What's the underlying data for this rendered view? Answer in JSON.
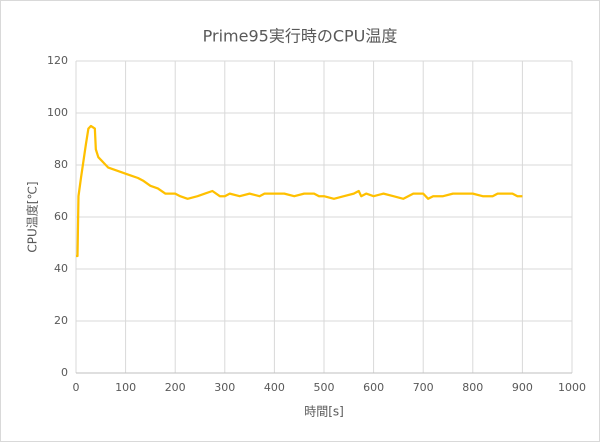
{
  "chart_data": {
    "type": "line",
    "title": "Prime95実行時のCPU温度",
    "xlabel": "時間[s]",
    "ylabel": "CPU温度[℃]",
    "color": "#FFC000",
    "grid": true,
    "xlim": [
      0,
      1000
    ],
    "xticks": [
      0,
      100,
      200,
      300,
      400,
      500,
      600,
      700,
      800,
      900,
      1000
    ],
    "ylim": [
      0,
      120
    ],
    "yticks": [
      0,
      20,
      40,
      60,
      80,
      100,
      120
    ],
    "x": [
      0,
      3,
      5,
      10,
      20,
      25,
      30,
      38,
      40,
      45,
      55,
      65,
      80,
      95,
      110,
      125,
      135,
      150,
      165,
      180,
      200,
      210,
      225,
      245,
      260,
      275,
      290,
      300,
      310,
      330,
      350,
      370,
      380,
      400,
      420,
      440,
      460,
      480,
      490,
      500,
      520,
      540,
      560,
      570,
      575,
      585,
      600,
      620,
      640,
      660,
      680,
      700,
      710,
      720,
      740,
      760,
      800,
      820,
      840,
      850,
      880,
      890,
      900
    ],
    "values": [
      45,
      45,
      68,
      75,
      88,
      94,
      95,
      94,
      86,
      83,
      81,
      79,
      78,
      77,
      76,
      75,
      74,
      72,
      71,
      69,
      69,
      68,
      67,
      68,
      69,
      70,
      68,
      68,
      69,
      68,
      69,
      68,
      69,
      69,
      69,
      68,
      69,
      69,
      68,
      68,
      67,
      68,
      69,
      70,
      68,
      69,
      68,
      69,
      68,
      67,
      69,
      69,
      67,
      68,
      68,
      69,
      69,
      68,
      68,
      69,
      69,
      68,
      68
    ]
  }
}
